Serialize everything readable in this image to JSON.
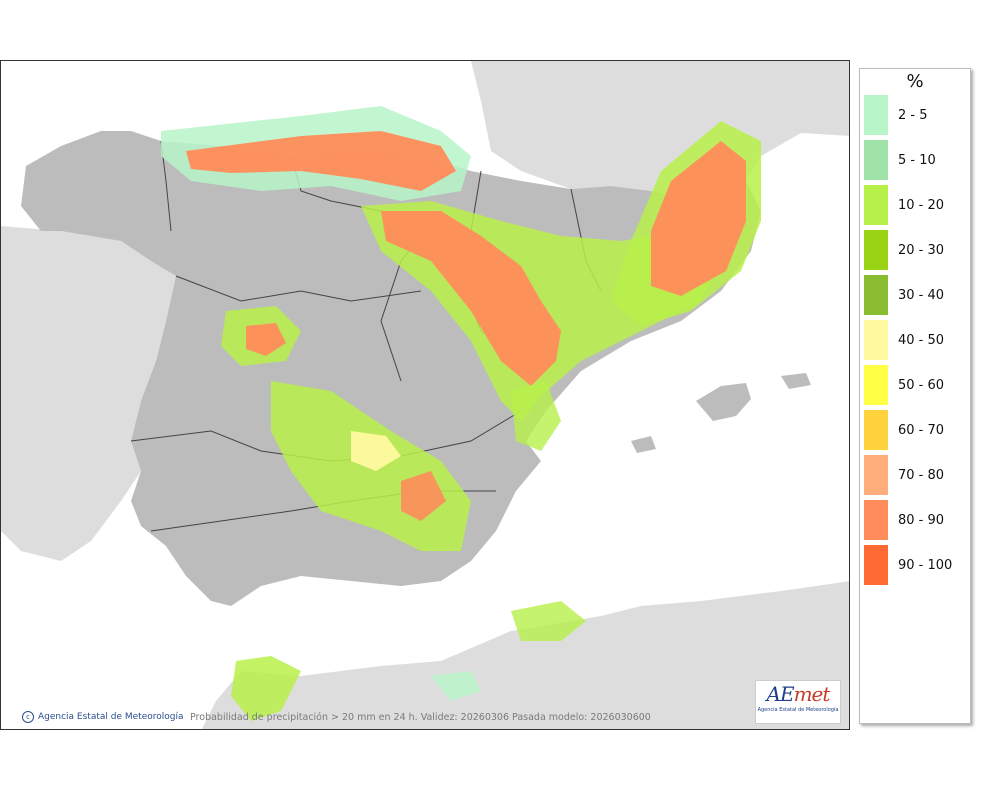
{
  "legend": {
    "unit": "%",
    "items": [
      {
        "label": "2 - 5",
        "color": "#b7f5c8"
      },
      {
        "label": "5 - 10",
        "color": "#9fe3a8"
      },
      {
        "label": "10 - 20",
        "color": "#b8f04a"
      },
      {
        "label": "20 - 30",
        "color": "#9ad314"
      },
      {
        "label": "30 - 40",
        "color": "#8bbd33"
      },
      {
        "label": "40 - 50",
        "color": "#fff9a0"
      },
      {
        "label": "50 - 60",
        "color": "#ffff45"
      },
      {
        "label": "60 - 70",
        "color": "#ffd33d"
      },
      {
        "label": "70 - 80",
        "color": "#ffad7a"
      },
      {
        "label": "80 - 90",
        "color": "#ff8c5a"
      },
      {
        "label": "90 - 100",
        "color": "#ff6a33"
      }
    ]
  },
  "footer": {
    "credit": "Agencia Estatal de Meteorología",
    "caption": "Probabilidad de precipitación > 20 mm en 24 h. Validez: 20260306 Pasada modelo: 2026030600"
  },
  "logo": {
    "mark_a": "AE",
    "mark_b": "met",
    "subtitle": "Agencia Estatal de Meteorología"
  },
  "map": {
    "sea_color": "#ffffff",
    "foreign_land_color": "#dddddd",
    "spain_color": "#bcbcbc"
  }
}
